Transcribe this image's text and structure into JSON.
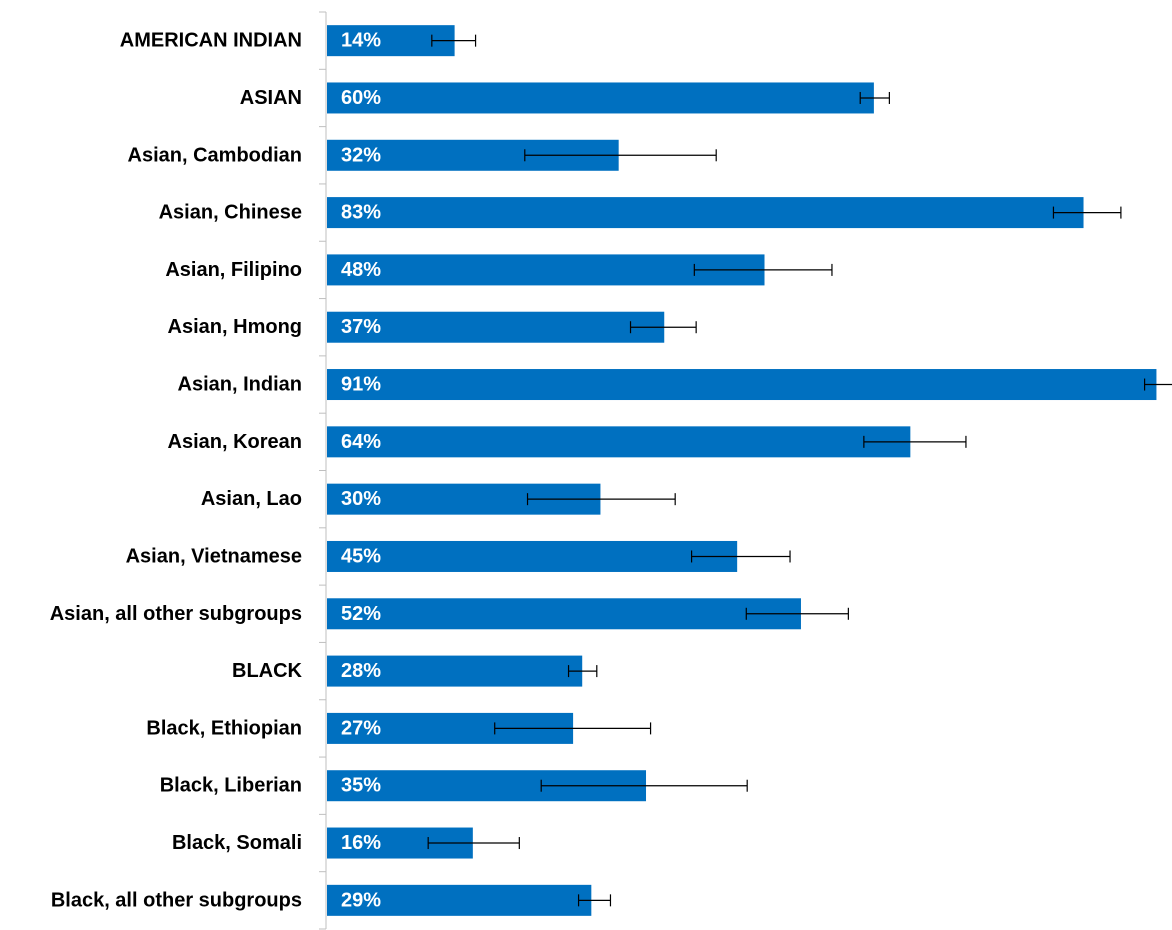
{
  "chart_data": {
    "type": "bar",
    "orientation": "horizontal",
    "title": "",
    "xlabel": "",
    "ylabel": "",
    "xlim": [
      0,
      91.5
    ],
    "grid": false,
    "legend": "none",
    "bar_color": "#0070C0",
    "categories": [
      "AMERICAN INDIAN",
      "ASIAN",
      "Asian, Cambodian",
      "Asian, Chinese",
      "Asian, Filipino",
      "Asian, Hmong",
      "Asian, Indian",
      "Asian, Korean",
      "Asian, Lao",
      "Asian, Vietnamese",
      "Asian, all other subgroups",
      "BLACK",
      "Black, Ethiopian",
      "Black, Liberian",
      "Black, Somali",
      "Black, all other subgroups"
    ],
    "values": [
      14,
      60,
      32,
      83,
      48,
      37,
      91,
      64,
      30,
      45,
      52,
      28,
      27,
      35,
      16,
      29
    ],
    "value_labels": [
      "14%",
      "60%",
      "32%",
      "83%",
      "48%",
      "37%",
      "91%",
      "64%",
      "30%",
      "45%",
      "52%",
      "28%",
      "27%",
      "35%",
      "16%",
      "29%"
    ],
    "error_low": [
      11.5,
      58.5,
      21.7,
      79.7,
      40.3,
      33.3,
      89.7,
      58.9,
      22.0,
      40.0,
      46.0,
      26.5,
      18.4,
      23.5,
      11.1,
      27.6
    ],
    "error_high": [
      16.3,
      61.7,
      42.7,
      87.1,
      55.4,
      40.5,
      92.9,
      70.1,
      38.2,
      50.8,
      57.2,
      29.6,
      35.5,
      46.1,
      21.1,
      31.1
    ]
  }
}
